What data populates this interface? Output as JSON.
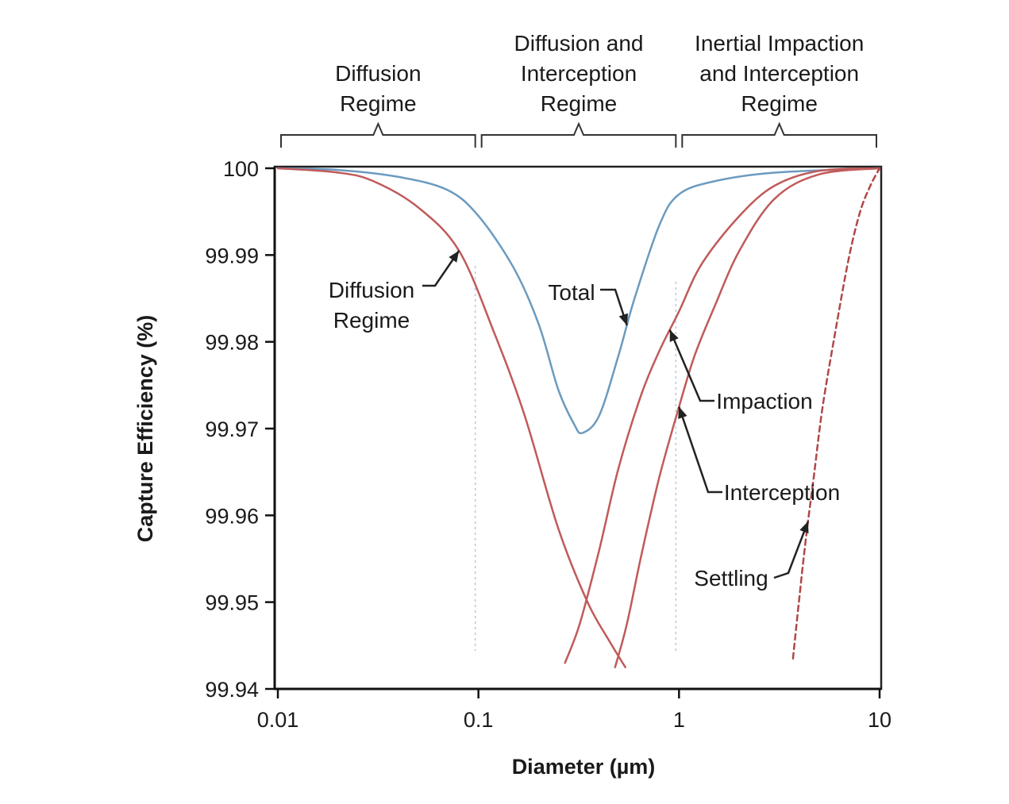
{
  "chart_data": {
    "type": "line",
    "title": "",
    "xlabel": "Diameter (µm)",
    "ylabel": "Capture Efficiency (%)",
    "xscale": "log",
    "xlim": [
      0.01,
      10
    ],
    "ylim": [
      99.94,
      100
    ],
    "x_ticks": [
      {
        "value": 0.01,
        "label": "0.01"
      },
      {
        "value": 0.1,
        "label": "0.1"
      },
      {
        "value": 1,
        "label": "1"
      },
      {
        "value": 10,
        "label": "10"
      }
    ],
    "y_ticks": [
      {
        "value": 100,
        "label": "100"
      },
      {
        "value": 99.99,
        "label": "99.99"
      },
      {
        "value": 99.98,
        "label": "99.98"
      },
      {
        "value": 99.97,
        "label": "99.97"
      },
      {
        "value": 99.96,
        "label": "99.96"
      },
      {
        "value": 99.95,
        "label": "99.95"
      },
      {
        "value": 99.94,
        "label": "99.94"
      }
    ],
    "series": [
      {
        "name": "Total",
        "color": "#6b9bbf",
        "style": "solid",
        "x": [
          0.01,
          0.02,
          0.04,
          0.07,
          0.1,
          0.15,
          0.2,
          0.25,
          0.3,
          0.33,
          0.4,
          0.5,
          0.6,
          0.8,
          1.0,
          1.5,
          3,
          10
        ],
        "y": [
          100,
          99.9998,
          99.999,
          99.9975,
          99.9945,
          99.9885,
          99.982,
          99.9745,
          99.9705,
          99.9695,
          99.9715,
          99.9785,
          99.985,
          99.9935,
          99.997,
          99.9985,
          99.9995,
          100
        ]
      },
      {
        "name": "Diffusion Regime",
        "color": "#c05a5a",
        "style": "solid",
        "x": [
          0.01,
          0.02,
          0.03,
          0.05,
          0.08,
          0.12,
          0.17,
          0.25,
          0.35,
          0.45,
          0.54
        ],
        "y": [
          100,
          99.9995,
          99.9985,
          99.9955,
          99.9905,
          99.981,
          99.9715,
          99.9585,
          99.95,
          99.9455,
          99.9425
        ]
      },
      {
        "name": "Impaction",
        "color": "#c05a5a",
        "style": "solid",
        "x": [
          0.27,
          0.32,
          0.4,
          0.5,
          0.65,
          0.8,
          1.0,
          1.3,
          2,
          3,
          5,
          10
        ],
        "y": [
          99.943,
          99.9475,
          99.956,
          99.9655,
          99.974,
          99.979,
          99.9835,
          99.989,
          99.9945,
          99.998,
          99.9997,
          100
        ]
      },
      {
        "name": "Interception",
        "color": "#c05a5a",
        "style": "solid",
        "x": [
          0.48,
          0.55,
          0.65,
          0.8,
          1.0,
          1.2,
          1.5,
          2,
          3,
          5,
          10
        ],
        "y": [
          99.9425,
          99.9475,
          99.9555,
          99.9645,
          99.9725,
          99.9785,
          99.984,
          99.9905,
          99.9965,
          99.9993,
          100
        ]
      },
      {
        "name": "Settling",
        "color": "#b04848",
        "style": "dashed",
        "x": [
          3.7,
          4.0,
          4.3,
          4.7,
          5.2,
          6,
          7,
          8,
          9,
          10
        ],
        "y": [
          99.9435,
          99.951,
          99.9575,
          99.9645,
          99.9725,
          99.981,
          99.9895,
          99.995,
          99.998,
          100
        ]
      }
    ],
    "regimes": [
      {
        "label_lines": [
          "Diffusion",
          "Regime"
        ],
        "from": 0.01,
        "to": 0.1
      },
      {
        "label_lines": [
          "Diffusion and",
          "Interception",
          "Regime"
        ],
        "from": 0.1,
        "to": 1
      },
      {
        "label_lines": [
          "Inertial Impaction",
          "and Interception",
          "Regime"
        ],
        "from": 1,
        "to": 10
      }
    ],
    "annotations": [
      {
        "label_lines": [
          "Diffusion",
          "Regime"
        ],
        "series": "Diffusion Regime",
        "at_x": 0.08
      },
      {
        "label_lines": [
          "Total"
        ],
        "series": "Total",
        "at_x": 0.55
      },
      {
        "label_lines": [
          "Impaction"
        ],
        "series": "Impaction",
        "at_x": 0.9
      },
      {
        "label_lines": [
          "Interception"
        ],
        "series": "Interception",
        "at_x": 1.0
      },
      {
        "label_lines": [
          "Settling"
        ],
        "series": "Settling",
        "at_x": 4.4
      }
    ]
  }
}
